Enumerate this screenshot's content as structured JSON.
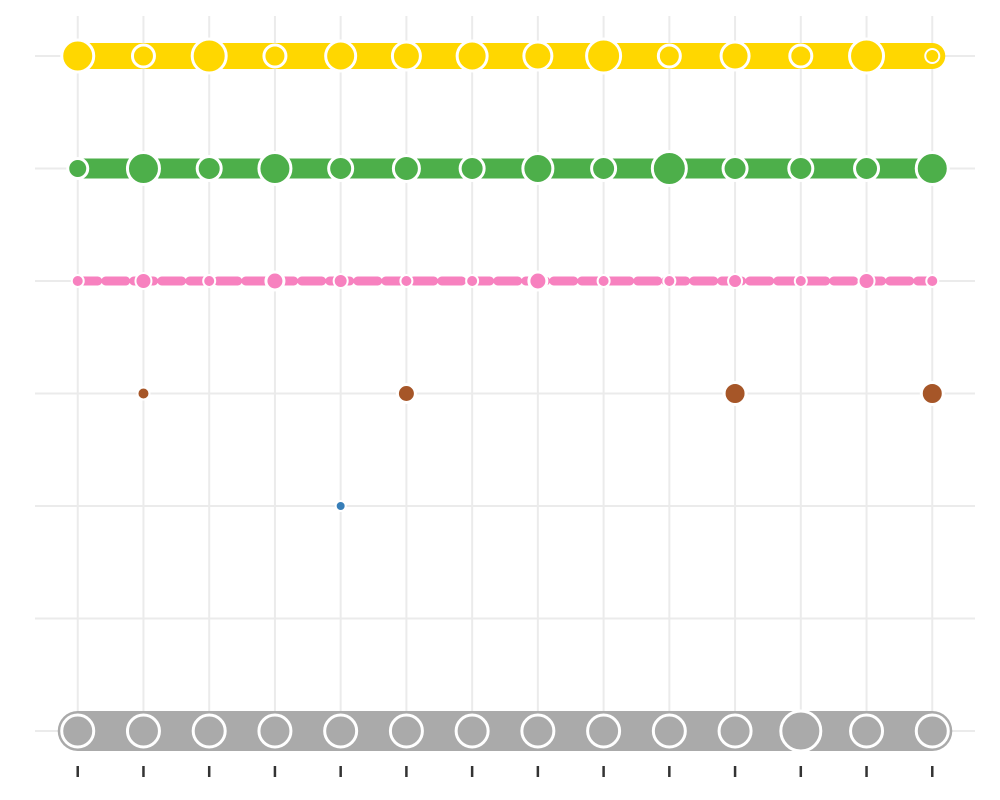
{
  "chart_data": {
    "type": "scatter",
    "xlim": [
      0.35,
      14.65
    ],
    "ylim": [
      0.6,
      7.4
    ],
    "xticks": [
      1,
      2,
      3,
      4,
      5,
      6,
      7,
      8,
      9,
      10,
      11,
      12,
      13,
      14
    ],
    "yticks": [
      1,
      2,
      3,
      4,
      5,
      6,
      7
    ],
    "grid": true,
    "series": [
      {
        "color": "#aaaaaa",
        "line_width": 40,
        "x": [
          1,
          2,
          3,
          4,
          5,
          6,
          7,
          8,
          9,
          10,
          11,
          12,
          13,
          14
        ],
        "values": [
          1,
          1,
          1,
          1,
          1,
          1,
          1,
          1,
          1,
          1,
          1,
          1,
          1,
          1
        ],
        "sizes": [
          16,
          16,
          16,
          16,
          16,
          16,
          16,
          16,
          16,
          16,
          16,
          20,
          16,
          16
        ]
      },
      {
        "color": "#ffd700",
        "line_width": 26,
        "x": [
          1,
          2,
          3,
          4,
          5,
          6,
          7,
          8,
          9,
          10,
          11,
          12,
          13,
          14
        ],
        "values": [
          7,
          7,
          7,
          7,
          7,
          7,
          7,
          7,
          7,
          7,
          7,
          7,
          7,
          7
        ],
        "sizes": [
          16,
          11,
          17,
          11,
          15,
          14,
          15,
          14,
          17,
          11,
          14,
          11,
          17,
          7
        ]
      },
      {
        "color": "#4daf4a",
        "line_width": 20,
        "x": [
          1,
          2,
          3,
          4,
          5,
          6,
          7,
          8,
          9,
          10,
          11,
          12,
          13,
          14
        ],
        "values": [
          6,
          6,
          6,
          6,
          6,
          6,
          6,
          6,
          6,
          6,
          6,
          6,
          6,
          6
        ],
        "sizes": [
          10,
          16,
          12,
          16,
          12,
          13,
          12,
          15,
          12,
          17,
          12,
          12,
          12,
          16
        ]
      },
      {
        "color": "#f781bf",
        "line_width": 9,
        "x": [
          1,
          2,
          3,
          4,
          5,
          6,
          7,
          8,
          9,
          10,
          11,
          12,
          13,
          14
        ],
        "values": [
          5,
          5,
          5,
          5,
          5,
          5,
          5,
          5,
          5,
          5,
          5,
          5,
          5,
          5
        ],
        "sizes": [
          6,
          8,
          6,
          9,
          7,
          6,
          6,
          9,
          6,
          6,
          7,
          6,
          8,
          6
        ]
      },
      {
        "color": "#a65628",
        "line_width": 0,
        "x": [
          2,
          6,
          11,
          14
        ],
        "values": [
          4,
          4,
          4,
          4
        ],
        "sizes": [
          6,
          9,
          11,
          11
        ]
      },
      {
        "color": "#377eb8",
        "line_width": 0,
        "x": [
          5
        ],
        "values": [
          3
        ],
        "sizes": [
          5
        ]
      }
    ]
  }
}
